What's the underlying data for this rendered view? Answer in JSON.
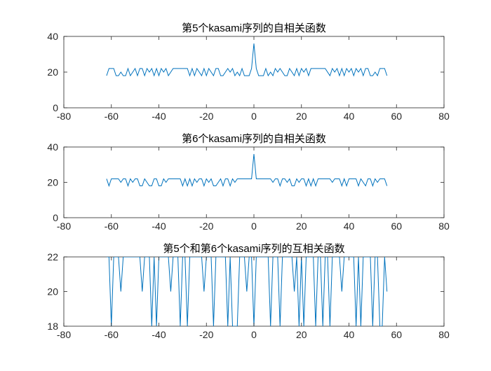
{
  "figure": {
    "background": "#ffffff",
    "line_color": "#0072BD",
    "axis_color": "#262626"
  },
  "chart_data": [
    {
      "type": "line",
      "title": "第5个kasami序列的自相关函数",
      "xlabel": "",
      "ylabel": "",
      "xlim": [
        -80,
        80
      ],
      "ylim": [
        0,
        40
      ],
      "xticks": [
        "-80",
        "-60",
        "-40",
        "-20",
        "0",
        "20",
        "40",
        "60",
        "80"
      ],
      "yticks": [
        "0",
        "20",
        "40"
      ],
      "grid": false,
      "x_start": -62,
      "y": [
        18,
        22,
        22,
        22,
        18,
        18,
        20,
        18,
        18,
        22,
        18,
        20,
        22,
        18,
        22,
        22,
        18,
        22,
        20,
        22,
        18,
        22,
        18,
        22,
        20,
        22,
        18,
        20,
        22,
        22,
        22,
        22,
        22,
        22,
        22,
        18,
        22,
        18,
        22,
        20,
        18,
        22,
        18,
        22,
        20,
        18,
        22,
        22,
        18,
        18,
        20,
        22,
        20,
        22,
        18,
        20,
        18,
        22,
        18,
        18,
        18,
        22,
        36,
        22,
        18,
        18,
        18,
        22,
        18,
        20,
        18,
        22,
        20,
        22,
        20,
        18,
        18,
        22,
        20,
        18,
        22,
        18,
        22,
        20,
        22,
        18,
        22,
        22,
        22,
        22,
        22,
        22,
        22,
        20,
        18,
        22,
        20,
        22,
        18,
        22,
        18,
        22,
        20,
        22,
        18,
        22,
        20,
        22,
        18,
        22,
        22,
        18,
        18,
        20,
        18,
        22,
        22,
        22,
        18
      ],
      "series_color": "#0072BD"
    },
    {
      "type": "line",
      "title": "第6个kasami序列的自相关函数",
      "xlabel": "",
      "ylabel": "",
      "xlim": [
        -80,
        80
      ],
      "ylim": [
        0,
        40
      ],
      "xticks": [
        "-80",
        "-60",
        "-40",
        "-20",
        "0",
        "20",
        "40",
        "60",
        "80"
      ],
      "yticks": [
        "0",
        "20",
        "40"
      ],
      "grid": false,
      "x_start": -62,
      "y": [
        22,
        18,
        22,
        22,
        22,
        22,
        20,
        22,
        22,
        18,
        22,
        20,
        22,
        22,
        18,
        18,
        22,
        20,
        18,
        18,
        22,
        22,
        18,
        18,
        22,
        20,
        22,
        22,
        22,
        22,
        22,
        22,
        18,
        22,
        18,
        22,
        18,
        22,
        20,
        22,
        22,
        18,
        22,
        20,
        22,
        18,
        18,
        20,
        22,
        18,
        22,
        22,
        18,
        22,
        20,
        22,
        22,
        22,
        22,
        22,
        22,
        22,
        36,
        22,
        22,
        22,
        22,
        22,
        22,
        22,
        20,
        22,
        22,
        18,
        22,
        22,
        20,
        22,
        18,
        18,
        22,
        20,
        22,
        22,
        18,
        22,
        18,
        22,
        18,
        22,
        22,
        22,
        22,
        22,
        22,
        20,
        22,
        22,
        22,
        18,
        22,
        18,
        22,
        22,
        22,
        22,
        18,
        22,
        20,
        18,
        22,
        22,
        18,
        22,
        20,
        22,
        22,
        22,
        18
      ],
      "series_color": "#0072BD"
    },
    {
      "type": "line",
      "title": "第5个和第6个kasami序列的互相关函数",
      "xlabel": "",
      "ylabel": "",
      "xlim": [
        -80,
        80
      ],
      "ylim": [
        18,
        22
      ],
      "xticks": [
        "-80",
        "-60",
        "-40",
        "-20",
        "0",
        "20",
        "40",
        "60",
        "80"
      ],
      "yticks": [
        "18",
        "20",
        "22"
      ],
      "grid": false,
      "x_start": -62,
      "y": [
        22,
        22,
        18,
        22,
        22,
        22,
        20,
        22,
        22,
        22,
        22,
        22,
        22,
        22,
        22,
        20,
        22,
        22,
        22,
        18,
        22,
        18,
        22,
        22,
        22,
        22,
        22,
        20,
        22,
        22,
        22,
        18,
        22,
        22,
        18,
        22,
        22,
        22,
        22,
        22,
        22,
        20,
        22,
        22,
        22,
        18,
        22,
        22,
        22,
        22,
        22,
        18,
        22,
        18,
        18,
        18,
        22,
        22,
        22,
        20,
        22,
        22,
        18,
        22,
        22,
        22,
        22,
        22,
        22,
        18,
        22,
        22,
        22,
        18,
        22,
        22,
        22,
        22,
        22,
        20,
        22,
        18,
        22,
        18,
        22,
        22,
        22,
        22,
        18,
        22,
        22,
        18,
        22,
        22,
        18,
        22,
        22,
        22,
        22,
        20,
        22,
        22,
        22,
        22,
        22,
        18,
        22,
        18,
        22,
        22,
        22,
        22,
        18,
        22,
        22,
        18,
        18,
        22,
        20
      ],
      "series_color": "#0072BD"
    }
  ]
}
